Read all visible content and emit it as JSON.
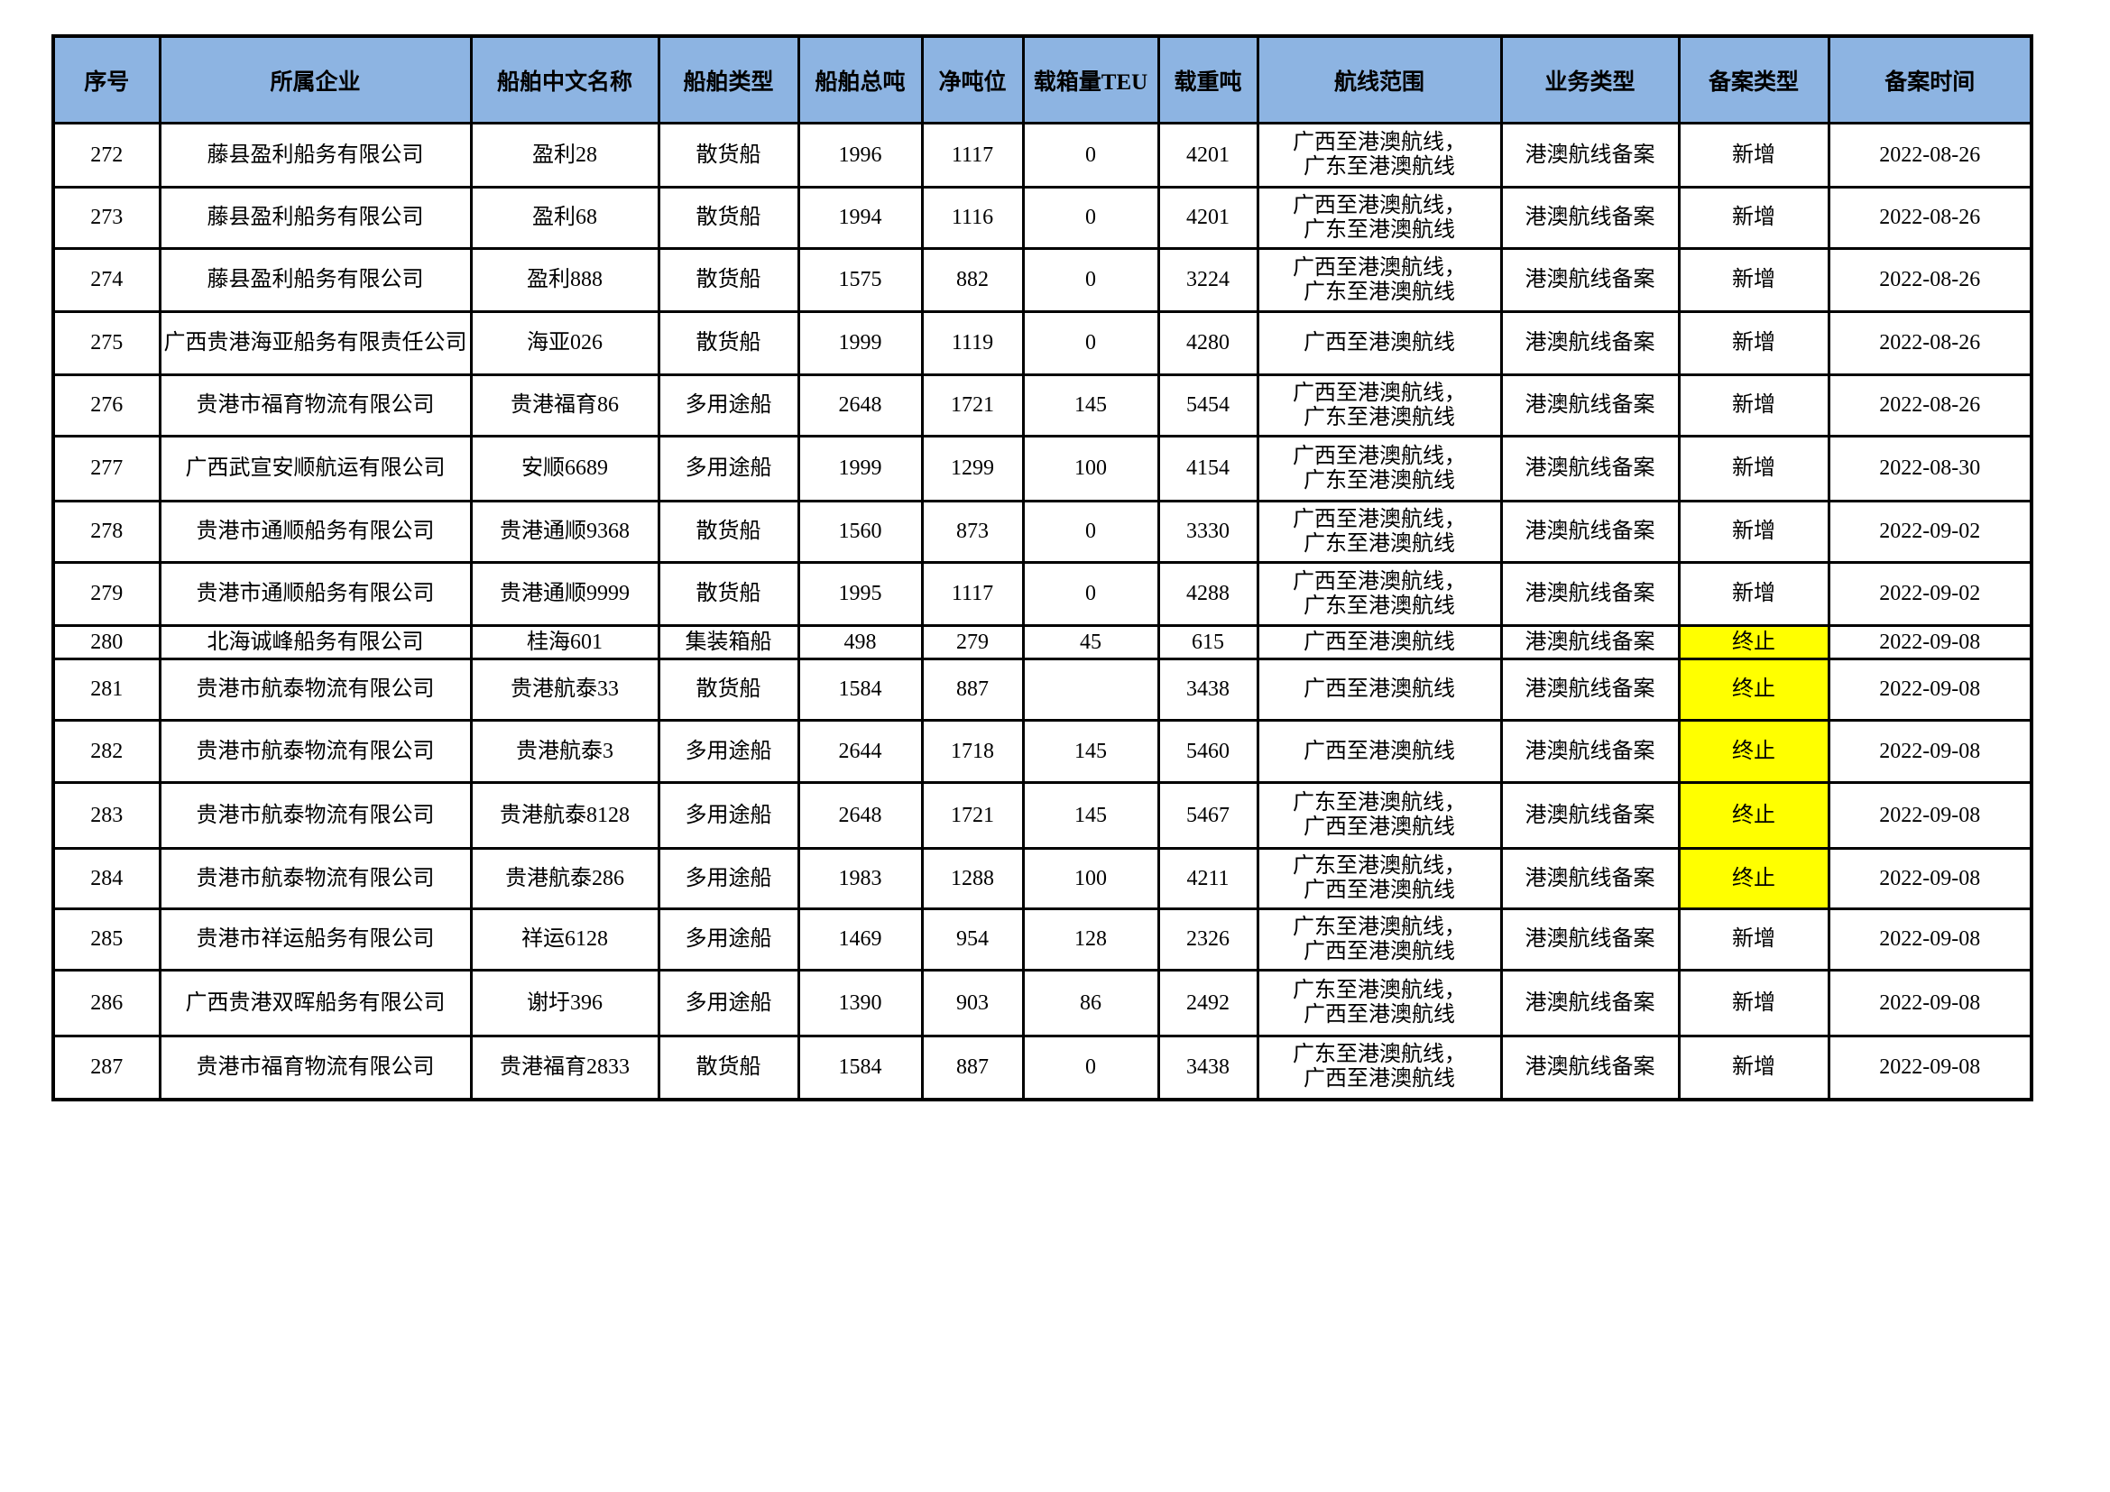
{
  "table": {
    "colors": {
      "header_bg": "#8db4e2",
      "highlight_bg": "#ffff00",
      "border": "#000000"
    },
    "columns": [
      "序号",
      "所属企业",
      "船舶中文名称",
      "船舶类型",
      "船舶总吨",
      "净吨位",
      "载箱量TEU",
      "载重吨",
      "航线范围",
      "业务类型",
      "备案类型",
      "备案时间"
    ],
    "rows": [
      {
        "seq": "272",
        "company": "藤县盈利船务有限公司",
        "ship_name": "盈利28",
        "ship_type": "散货船",
        "gross_tonnage": "1996",
        "net_tonnage": "1117",
        "teu": "0",
        "dwt": "4201",
        "route": "广西至港澳航线，广东至港澳航线",
        "business_type": "港澳航线备案",
        "filing_type": "新增",
        "filing_date": "2022-08-26",
        "highlight": false
      },
      {
        "seq": "273",
        "company": "藤县盈利船务有限公司",
        "ship_name": "盈利68",
        "ship_type": "散货船",
        "gross_tonnage": "1994",
        "net_tonnage": "1116",
        "teu": "0",
        "dwt": "4201",
        "route": "广西至港澳航线，广东至港澳航线",
        "business_type": "港澳航线备案",
        "filing_type": "新增",
        "filing_date": "2022-08-26",
        "highlight": false
      },
      {
        "seq": "274",
        "company": "藤县盈利船务有限公司",
        "ship_name": "盈利888",
        "ship_type": "散货船",
        "gross_tonnage": "1575",
        "net_tonnage": "882",
        "teu": "0",
        "dwt": "3224",
        "route": "广西至港澳航线，广东至港澳航线",
        "business_type": "港澳航线备案",
        "filing_type": "新增",
        "filing_date": "2022-08-26",
        "highlight": false
      },
      {
        "seq": "275",
        "company": "广西贵港海亚船务有限责任公司",
        "ship_name": "海亚026",
        "ship_type": "散货船",
        "gross_tonnage": "1999",
        "net_tonnage": "1119",
        "teu": "0",
        "dwt": "4280",
        "route": "广西至港澳航线",
        "business_type": "港澳航线备案",
        "filing_type": "新增",
        "filing_date": "2022-08-26",
        "highlight": false
      },
      {
        "seq": "276",
        "company": "贵港市福育物流有限公司",
        "ship_name": "贵港福育86",
        "ship_type": "多用途船",
        "gross_tonnage": "2648",
        "net_tonnage": "1721",
        "teu": "145",
        "dwt": "5454",
        "route": "广西至港澳航线，广东至港澳航线",
        "business_type": "港澳航线备案",
        "filing_type": "新增",
        "filing_date": "2022-08-26",
        "highlight": false
      },
      {
        "seq": "277",
        "company": "广西武宣安顺航运有限公司",
        "ship_name": "安顺6689",
        "ship_type": "多用途船",
        "gross_tonnage": "1999",
        "net_tonnage": "1299",
        "teu": "100",
        "dwt": "4154",
        "route": "广西至港澳航线，广东至港澳航线",
        "business_type": "港澳航线备案",
        "filing_type": "新增",
        "filing_date": "2022-08-30",
        "highlight": false
      },
      {
        "seq": "278",
        "company": "贵港市通顺船务有限公司",
        "ship_name": "贵港通顺9368",
        "ship_type": "散货船",
        "gross_tonnage": "1560",
        "net_tonnage": "873",
        "teu": "0",
        "dwt": "3330",
        "route": "广西至港澳航线，广东至港澳航线",
        "business_type": "港澳航线备案",
        "filing_type": "新增",
        "filing_date": "2022-09-02",
        "highlight": false
      },
      {
        "seq": "279",
        "company": "贵港市通顺船务有限公司",
        "ship_name": "贵港通顺9999",
        "ship_type": "散货船",
        "gross_tonnage": "1995",
        "net_tonnage": "1117",
        "teu": "0",
        "dwt": "4288",
        "route": "广西至港澳航线，广东至港澳航线",
        "business_type": "港澳航线备案",
        "filing_type": "新增",
        "filing_date": "2022-09-02",
        "highlight": false
      },
      {
        "seq": "280",
        "company": "北海诚峰船务有限公司",
        "ship_name": "桂海601",
        "ship_type": "集装箱船",
        "gross_tonnage": "498",
        "net_tonnage": "279",
        "teu": "45",
        "dwt": "615",
        "route": "广西至港澳航线",
        "business_type": "港澳航线备案",
        "filing_type": "终止",
        "filing_date": "2022-09-08",
        "highlight": true
      },
      {
        "seq": "281",
        "company": "贵港市航泰物流有限公司",
        "ship_name": "贵港航泰33",
        "ship_type": "散货船",
        "gross_tonnage": "1584",
        "net_tonnage": "887",
        "teu": "",
        "dwt": "3438",
        "route": "广西至港澳航线",
        "business_type": "港澳航线备案",
        "filing_type": "终止",
        "filing_date": "2022-09-08",
        "highlight": true
      },
      {
        "seq": "282",
        "company": "贵港市航泰物流有限公司",
        "ship_name": "贵港航泰3",
        "ship_type": "多用途船",
        "gross_tonnage": "2644",
        "net_tonnage": "1718",
        "teu": "145",
        "dwt": "5460",
        "route": "广西至港澳航线",
        "business_type": "港澳航线备案",
        "filing_type": "终止",
        "filing_date": "2022-09-08",
        "highlight": true
      },
      {
        "seq": "283",
        "company": "贵港市航泰物流有限公司",
        "ship_name": "贵港航泰8128",
        "ship_type": "多用途船",
        "gross_tonnage": "2648",
        "net_tonnage": "1721",
        "teu": "145",
        "dwt": "5467",
        "route": "广东至港澳航线，广西至港澳航线",
        "business_type": "港澳航线备案",
        "filing_type": "终止",
        "filing_date": "2022-09-08",
        "highlight": true
      },
      {
        "seq": "284",
        "company": "贵港市航泰物流有限公司",
        "ship_name": "贵港航泰286",
        "ship_type": "多用途船",
        "gross_tonnage": "1983",
        "net_tonnage": "1288",
        "teu": "100",
        "dwt": "4211",
        "route": "广东至港澳航线，广西至港澳航线",
        "business_type": "港澳航线备案",
        "filing_type": "终止",
        "filing_date": "2022-09-08",
        "highlight": true
      },
      {
        "seq": "285",
        "company": "贵港市祥运船务有限公司",
        "ship_name": "祥运6128",
        "ship_type": "多用途船",
        "gross_tonnage": "1469",
        "net_tonnage": "954",
        "teu": "128",
        "dwt": "2326",
        "route": "广东至港澳航线，广西至港澳航线",
        "business_type": "港澳航线备案",
        "filing_type": "新增",
        "filing_date": "2022-09-08",
        "highlight": false
      },
      {
        "seq": "286",
        "company": "广西贵港双晖船务有限公司",
        "ship_name": "谢圩396",
        "ship_type": "多用途船",
        "gross_tonnage": "1390",
        "net_tonnage": "903",
        "teu": "86",
        "dwt": "2492",
        "route": "广东至港澳航线，广西至港澳航线",
        "business_type": "港澳航线备案",
        "filing_type": "新增",
        "filing_date": "2022-09-08",
        "highlight": false
      },
      {
        "seq": "287",
        "company": "贵港市福育物流有限公司",
        "ship_name": "贵港福育2833",
        "ship_type": "散货船",
        "gross_tonnage": "1584",
        "net_tonnage": "887",
        "teu": "0",
        "dwt": "3438",
        "route": "广东至港澳航线，广西至港澳航线",
        "business_type": "港澳航线备案",
        "filing_type": "新增",
        "filing_date": "2022-09-08",
        "highlight": false
      }
    ]
  }
}
